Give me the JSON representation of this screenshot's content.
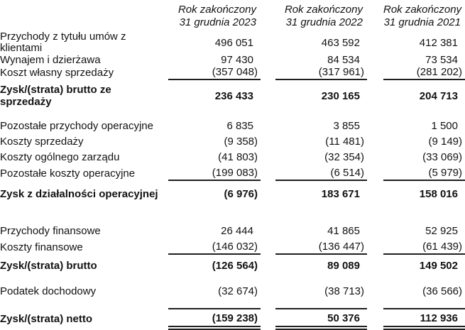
{
  "header": {
    "columns": [
      {
        "line1": "Rok zakończony",
        "line2": "31 grudnia 2023"
      },
      {
        "line1": "Rok zakończony",
        "line2": "31 grudnia 2022"
      },
      {
        "line1": "Rok zakończony",
        "line2": "31 grudnia 2021"
      }
    ]
  },
  "rows": [
    {
      "label": "Przychody z tytułu umów z klientami",
      "values": [
        "496 051",
        "463 592",
        "412 381"
      ]
    },
    {
      "label": "Wynajem i dzierżawa",
      "values": [
        "97 430",
        "84 534",
        "73 534"
      ]
    },
    {
      "label": "Koszt własny sprzedaży",
      "values": [
        "(357 048)",
        "(317 961)",
        "(281 202)"
      ]
    },
    {
      "label": "Zysk/(strata) brutto ze sprzedaży",
      "values": [
        "236 433",
        "230 165",
        "204 713"
      ]
    },
    {
      "label": "Pozostałe przychody operacyjne",
      "values": [
        "6 835",
        "3 855",
        "1 500"
      ]
    },
    {
      "label": "Koszty sprzedaży",
      "values": [
        "(9 358)",
        "(11 481)",
        "(9 149)"
      ]
    },
    {
      "label": "Koszty ogólnego zarządu",
      "values": [
        "(41 803)",
        "(32 354)",
        "(33 069)"
      ]
    },
    {
      "label": "Pozostałe koszty operacyjne",
      "values": [
        "(199 083)",
        "(6 514)",
        "(5 979)"
      ]
    },
    {
      "label": "Zysk z działalności operacyjnej",
      "values": [
        "(6 976)",
        "183 671",
        "158 016"
      ]
    },
    {
      "label": "Przychody finansowe",
      "values": [
        "26 444",
        "41 865",
        "52 925"
      ]
    },
    {
      "label": "Koszty finansowe",
      "values": [
        "(146 032)",
        "(136 447)",
        "(61 439)"
      ]
    },
    {
      "label": "Zysk/(strata) brutto",
      "values": [
        "(126 564)",
        "89 089",
        "149 502"
      ]
    },
    {
      "label": "Podatek dochodowy",
      "values": [
        "(32 674)",
        "(38 713)",
        "(36 566)"
      ]
    },
    {
      "label": "Zysk/(strata) netto",
      "values": [
        "(159 238)",
        "50 376",
        "112 936"
      ]
    }
  ]
}
